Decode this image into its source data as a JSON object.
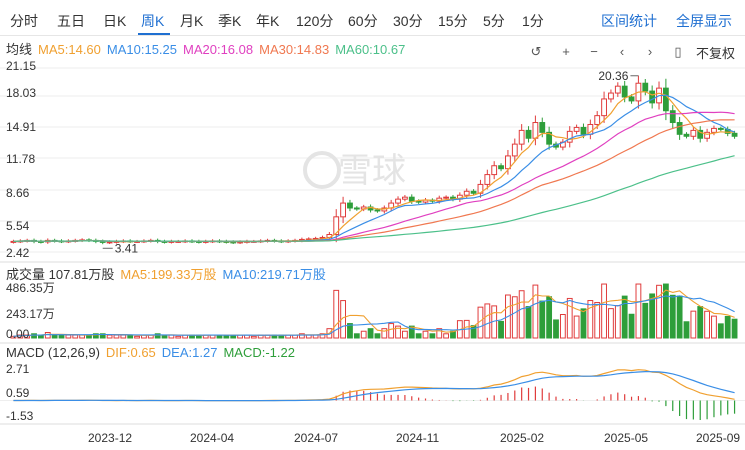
{
  "tabs": [
    {
      "label": "分时",
      "active": false
    },
    {
      "label": "五日",
      "active": false
    },
    {
      "label": "日K",
      "active": false
    },
    {
      "label": "周K",
      "active": true
    },
    {
      "label": "月K",
      "active": false
    },
    {
      "label": "季K",
      "active": false
    },
    {
      "label": "年K",
      "active": false
    },
    {
      "label": "120分",
      "active": false
    },
    {
      "label": "60分",
      "active": false
    },
    {
      "label": "30分",
      "active": false
    },
    {
      "label": "15分",
      "active": false
    },
    {
      "label": "5分",
      "active": false
    },
    {
      "label": "1分",
      "active": false
    }
  ],
  "links": {
    "interval_stats": "区间统计",
    "fullscreen": "全屏显示"
  },
  "toolbar": {
    "adjust": "不复权",
    "icons": [
      "undo-icon",
      "zoom-in-icon",
      "zoom-out-icon",
      "pan-left-icon",
      "pan-right-icon",
      "candle-type-icon"
    ]
  },
  "ma_legend": {
    "title": "均线",
    "items": [
      {
        "text": "MA5:14.60",
        "color": "#f0a030"
      },
      {
        "text": "MA10:15.25",
        "color": "#3a8ee6"
      },
      {
        "text": "MA20:16.08",
        "color": "#e040c0"
      },
      {
        "text": "MA30:14.83",
        "color": "#f07850"
      },
      {
        "text": "MA60:10.67",
        "color": "#4cc08a"
      }
    ]
  },
  "price_axis": [
    "21.15",
    "18.03",
    "14.91",
    "11.78",
    "8.66",
    "5.54",
    "2.42"
  ],
  "price_annotations": {
    "high": "20.36",
    "low": "3.41"
  },
  "volume_legend": {
    "title": "成交量 107.81万股",
    "items": [
      {
        "text": "MA5:199.33万股",
        "color": "#f0a030"
      },
      {
        "text": "MA10:219.71万股",
        "color": "#3a8ee6"
      }
    ]
  },
  "volume_axis": [
    "486.35万",
    "243.17万",
    "0.00"
  ],
  "macd_legend": {
    "title": "MACD (12,26,9)",
    "items": [
      {
        "text": "DIF:0.65",
        "color": "#f0a030"
      },
      {
        "text": "DEA:1.27",
        "color": "#3a8ee6"
      },
      {
        "text": "MACD:-1.22",
        "color": "#2e9e3a"
      }
    ]
  },
  "macd_axis": [
    "2.71",
    "0.59",
    "-1.53"
  ],
  "x_axis": [
    "2023-12",
    "2024-04",
    "2024-07",
    "2024-11",
    "2025-02",
    "2025-05",
    "2025-09"
  ],
  "watermark": "雪球",
  "colors": {
    "up": "#e03c3c",
    "down": "#2e9e3a",
    "accent": "#1f6fd1",
    "grid": "#ececec"
  },
  "chart_data": {
    "type": "candlestick",
    "period": "weekly",
    "price_range": [
      2.42,
      21.15
    ],
    "close": [
      3.5,
      3.55,
      3.6,
      3.5,
      3.45,
      3.6,
      3.55,
      3.5,
      3.55,
      3.6,
      3.65,
      3.6,
      3.5,
      3.4,
      3.45,
      3.5,
      3.55,
      3.5,
      3.5,
      3.55,
      3.6,
      3.5,
      3.45,
      3.5,
      3.5,
      3.55,
      3.5,
      3.45,
      3.5,
      3.55,
      3.5,
      3.45,
      3.4,
      3.45,
      3.5,
      3.5,
      3.55,
      3.6,
      3.55,
      3.5,
      3.55,
      3.6,
      3.7,
      3.75,
      3.8,
      3.9,
      4.2,
      6.0,
      7.4,
      6.9,
      6.8,
      7.0,
      6.7,
      6.6,
      6.9,
      7.4,
      7.8,
      8.0,
      7.6,
      7.5,
      7.7,
      7.6,
      7.9,
      8.0,
      7.8,
      8.2,
      8.6,
      8.4,
      9.3,
      10.3,
      11.2,
      10.9,
      12.2,
      13.4,
      14.8,
      14.0,
      15.6,
      14.6,
      13.4,
      13.1,
      13.6,
      14.7,
      15.1,
      14.4,
      15.4,
      16.3,
      18.0,
      18.6,
      19.3,
      18.2,
      17.8,
      19.6,
      18.8,
      17.6,
      19.1,
      16.8,
      15.6,
      14.4,
      14.2,
      14.8,
      14.0,
      14.6,
      15.0,
      14.9,
      14.5,
      14.2
    ],
    "ma_values_latest": {
      "MA5": 14.6,
      "MA10": 15.25,
      "MA20": 16.08,
      "MA30": 14.83,
      "MA60": 10.67
    },
    "volume_range": [
      0,
      486.35
    ],
    "volume_unit": "万股",
    "volume_latest": 107.81,
    "volume_ma_latest": {
      "MA5": 199.33,
      "MA10": 219.71
    },
    "macd_range": [
      -1.53,
      2.71
    ],
    "macd_latest": {
      "DIF": 0.65,
      "DEA": 1.27,
      "MACD": -1.22
    }
  }
}
